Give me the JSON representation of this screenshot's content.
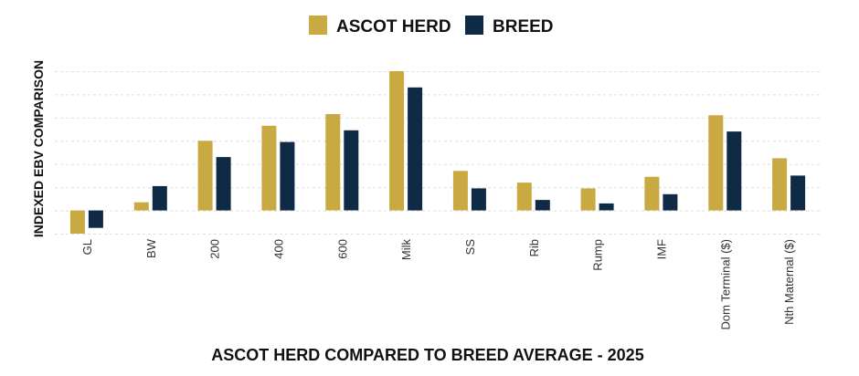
{
  "chart_data": {
    "type": "bar",
    "title": "ASCOT HERD COMPARED TO BREED AVERAGE - 2025",
    "xlabel": "",
    "ylabel": "INDEXED EBV COMPARISON",
    "categories": [
      "GL",
      "BW",
      "200",
      "400",
      "600",
      "Milk",
      "SS",
      "Rib",
      "Rump",
      "IMF",
      "Dom Terminal ($)",
      "Nth Maternal ($)"
    ],
    "series": [
      {
        "name": "ASCOT HERD",
        "color": "#c9a942",
        "values": [
          -1.0,
          0.35,
          3.0,
          3.65,
          4.15,
          6.0,
          1.7,
          1.2,
          0.95,
          1.45,
          4.1,
          2.25
        ]
      },
      {
        "name": "BREED",
        "color": "#0f2a44",
        "values": [
          -0.75,
          1.05,
          2.3,
          2.95,
          3.45,
          5.3,
          0.95,
          0.45,
          0.3,
          0.7,
          3.4,
          1.5
        ]
      }
    ],
    "ylim": [
      -1,
      6
    ],
    "grid": true,
    "legend": "top-center"
  }
}
